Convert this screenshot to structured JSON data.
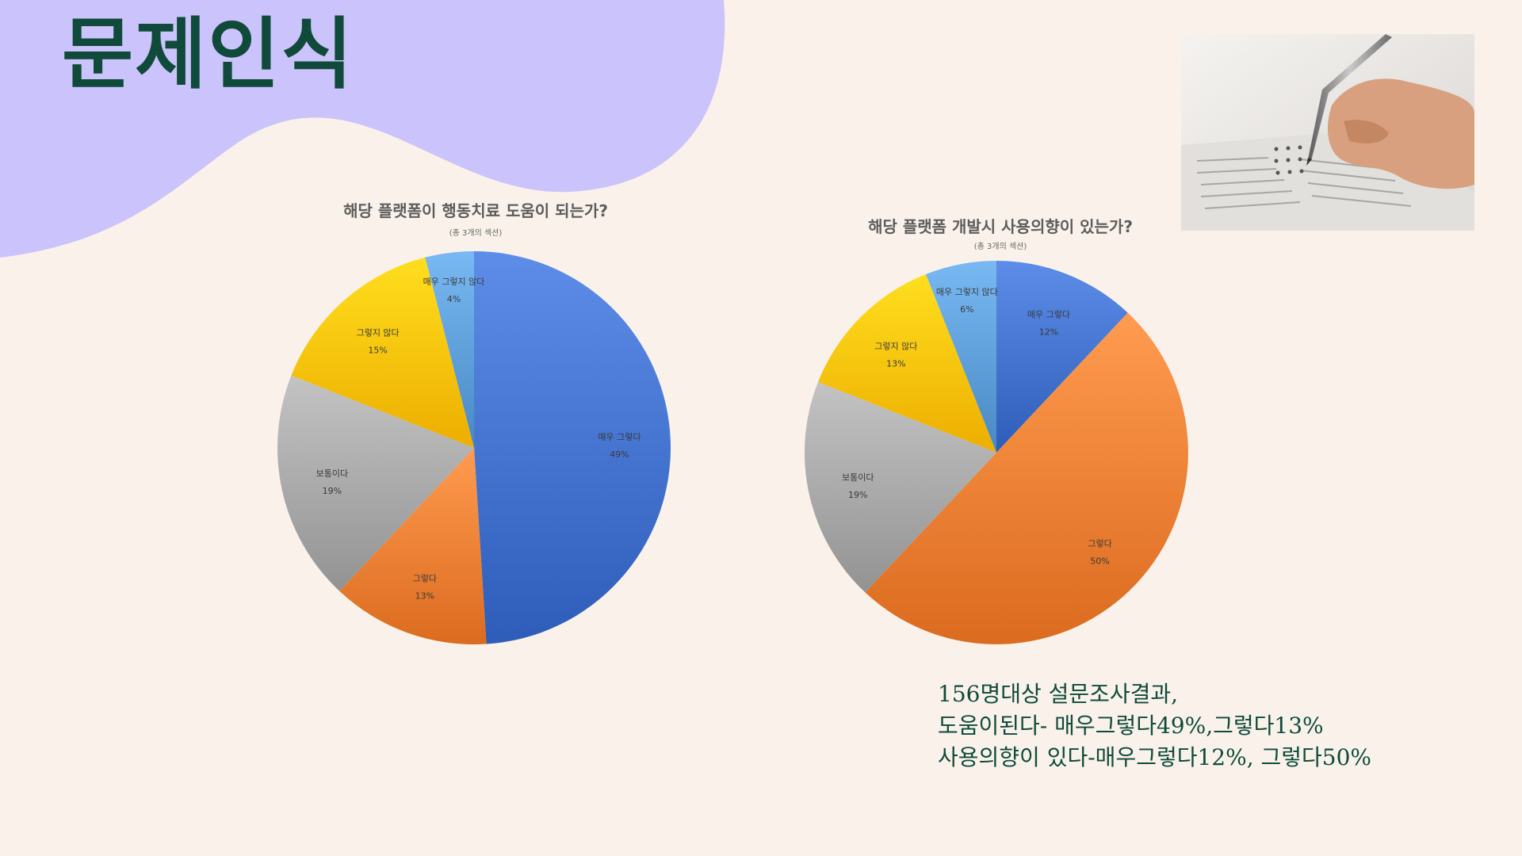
{
  "slide": {
    "title": "문제인식",
    "summary_lines": [
      "156명대상 설문조사결과,",
      "도움이된다- 매우그렇다49%,그렇다13%",
      "사용의향이 있다-매우그렇다12%, 그렇다50%"
    ]
  },
  "colors": {
    "background": "#faf2ea",
    "blob": "#cbc3fb",
    "title": "#0f4a3a",
    "매우 그렇다": "#3f6fca",
    "그렇다": "#ed7d31",
    "보통이다": "#a5a5a5",
    "그렇지 않다": "#ffc000",
    "매우 그렇지 않다": "#5b9bd5"
  },
  "photo": {
    "icon": "hand-writing-survey-photo"
  },
  "chart_data": [
    {
      "type": "pie",
      "title": "해당 플랫폼이 행동치료 도움이 되는가?",
      "subtitle": "(총 3개의 섹션)",
      "slices": [
        {
          "label": "매우 그렇다",
          "value": 49,
          "display": "49%"
        },
        {
          "label": "그렇다",
          "value": 13,
          "display": "13%"
        },
        {
          "label": "보통이다",
          "value": 19,
          "display": "19%"
        },
        {
          "label": "그렇지 않다",
          "value": 15,
          "display": "15%"
        },
        {
          "label": "매우 그렇지 않다",
          "value": 4,
          "display": "4%"
        }
      ]
    },
    {
      "type": "pie",
      "title": "해당 플랫폼 개발시 사용의향이 있는가?",
      "subtitle": "(총 3개의 섹션)",
      "slices": [
        {
          "label": "매우 그렇다",
          "value": 12,
          "display": "12%"
        },
        {
          "label": "그렇다",
          "value": 50,
          "display": "50%"
        },
        {
          "label": "보통이다",
          "value": 19,
          "display": "19%"
        },
        {
          "label": "그렇지 않다",
          "value": 13,
          "display": "13%"
        },
        {
          "label": "매우 그렇지 않다",
          "value": 6,
          "display": "6%"
        }
      ]
    }
  ]
}
